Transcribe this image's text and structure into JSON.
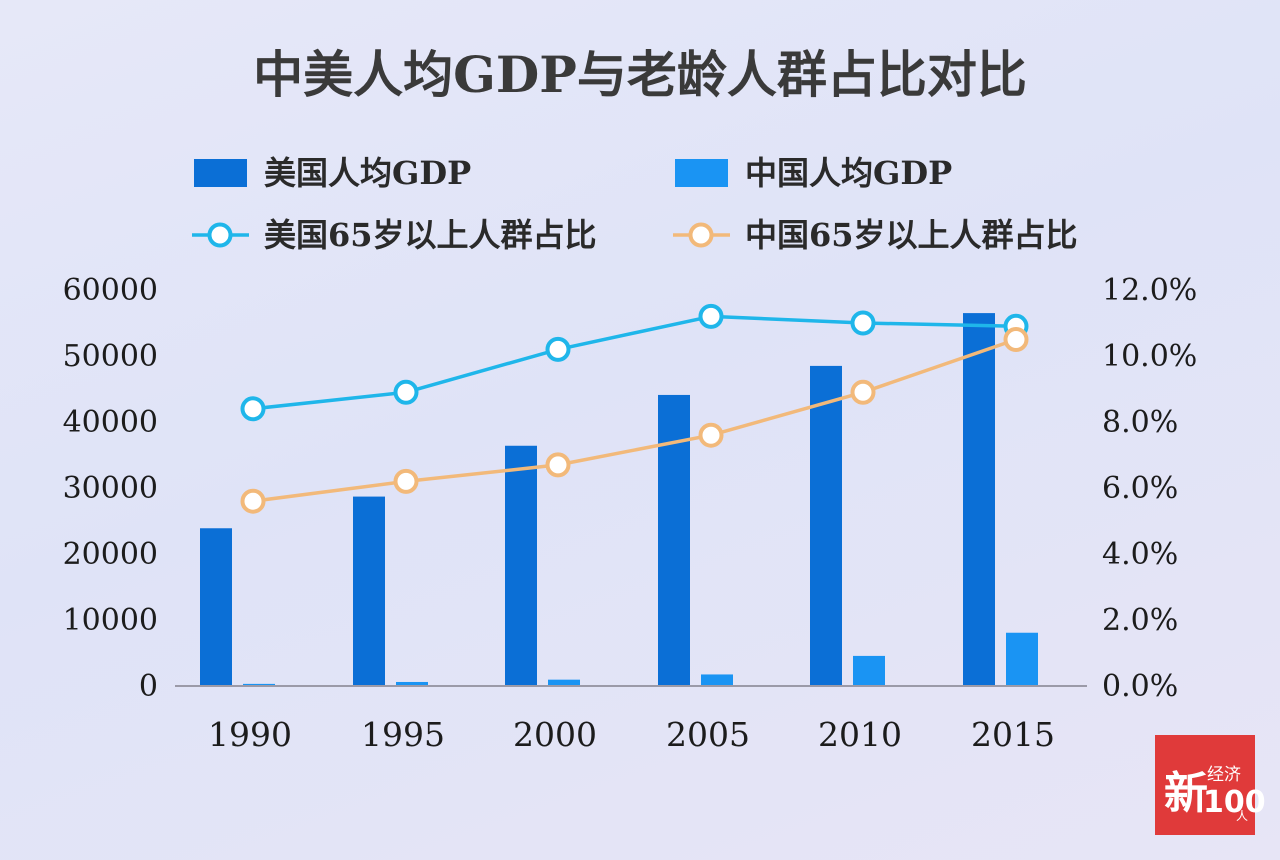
{
  "chart_data": {
    "type": "bar",
    "title": "中美人均GDP与老龄人群占比对比",
    "categories": [
      "1990",
      "1995",
      "2000",
      "2005",
      "2010",
      "2015"
    ],
    "y_left": {
      "ticks": [
        "0",
        "10000",
        "20000",
        "30000",
        "40000",
        "50000",
        "60000"
      ],
      "range": [
        0,
        60000
      ]
    },
    "y_right": {
      "ticks": [
        "0.0%",
        "2.0%",
        "4.0%",
        "6.0%",
        "8.0%",
        "10.0%",
        "12.0%"
      ],
      "range": [
        0,
        12
      ]
    },
    "series": [
      {
        "name": "美国人均GDP",
        "type": "bar",
        "axis": "left",
        "color": "#0b6fd6",
        "values": [
          23900,
          28700,
          36400,
          44100,
          48500,
          56500
        ]
      },
      {
        "name": "中国人均GDP",
        "type": "bar",
        "axis": "left",
        "color": "#1a94f3",
        "values": [
          320,
          610,
          960,
          1750,
          4560,
          8070
        ]
      },
      {
        "name": "美国65岁以上人群占比",
        "type": "line",
        "axis": "right",
        "color": "#1fb6ea",
        "values": [
          8.4,
          8.9,
          10.2,
          11.2,
          11.0,
          10.9
        ]
      },
      {
        "name": "中国65岁以上人群占比",
        "type": "line",
        "axis": "right",
        "color": "#f2b97a",
        "values": [
          5.6,
          6.2,
          6.7,
          7.6,
          8.9,
          10.5
        ]
      }
    ],
    "legend_position": "top",
    "grid": false
  },
  "logo": {
    "main": "新",
    "top": "经济",
    "digits": "100",
    "sub": "人",
    "color": "#e03a3a"
  }
}
